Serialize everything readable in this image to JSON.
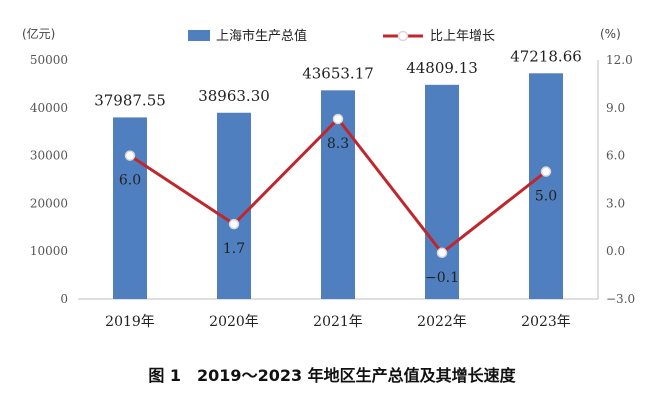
{
  "chart_data": {
    "type": "bar+line",
    "categories": [
      "2019年",
      "2020年",
      "2021年",
      "2022年",
      "2023年"
    ],
    "series": [
      {
        "name": "上海市生产总值",
        "kind": "bar",
        "axis": "left",
        "values": [
          37987.55,
          38963.3,
          43653.17,
          44809.13,
          47218.66
        ],
        "labels": [
          "37987.55",
          "38963.30",
          "43653.17",
          "44809.13",
          "47218.66"
        ],
        "color": "#4f7fbf"
      },
      {
        "name": "比上年增长",
        "kind": "line",
        "axis": "right",
        "values": [
          6.0,
          1.7,
          8.3,
          -0.1,
          5.0
        ],
        "labels": [
          "6.0",
          "1.7",
          "8.3",
          "−0.1",
          "5.0"
        ],
        "color": "#c0272d"
      }
    ],
    "left_axis": {
      "unit": "(亿元)",
      "range": [
        0,
        50000
      ],
      "ticks": [
        0,
        10000,
        20000,
        30000,
        40000,
        50000
      ],
      "tick_labels": [
        "0",
        "10000",
        "20000",
        "30000",
        "40000",
        "50000"
      ]
    },
    "right_axis": {
      "unit": "(%)",
      "range": [
        -3.0,
        12.0
      ],
      "ticks": [
        -3.0,
        0.0,
        3.0,
        6.0,
        9.0,
        12.0
      ],
      "tick_labels": [
        "−3.0",
        "0.0",
        "3.0",
        "6.0",
        "9.0",
        "12.0"
      ]
    },
    "legend_position": "top",
    "grid": false,
    "caption": "图 1　2019～2023 年地区生产总值及其增长速度"
  }
}
